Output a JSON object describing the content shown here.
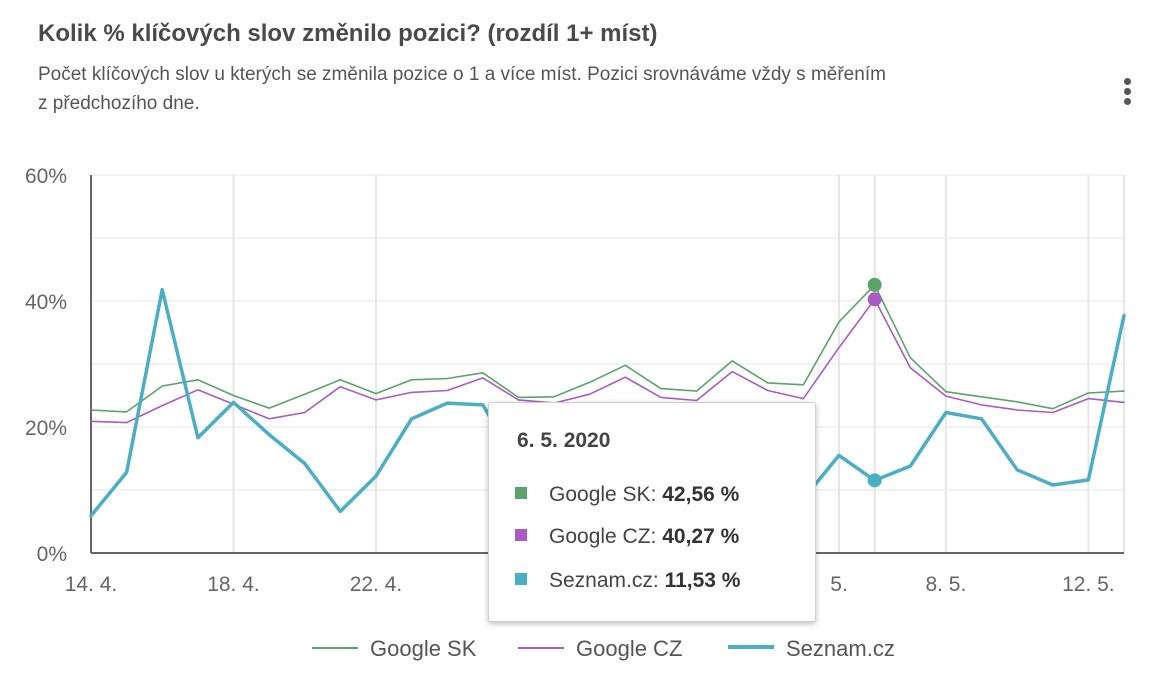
{
  "title": "Kolik % klíčových slov změnilo pozici? (rozdíl 1+ míst)",
  "subtitle": "Počet klíčových slov u kterých se změnila pozice o 1 a více míst. Pozici srovnáváme vždy s měřením z předchozího dne.",
  "menu_icon": "more-vert-icon",
  "chart_data": {
    "type": "line",
    "title": "Kolik % klíčových slov změnilo pozici? (rozdíl 1+ míst)",
    "ylim": [
      0,
      60
    ],
    "yticks": [
      "0%",
      "20%",
      "40%",
      "60%"
    ],
    "ytick_values": [
      0,
      20,
      40,
      60
    ],
    "xlabels": [
      {
        "label": "14. 4.",
        "index": 0
      },
      {
        "label": "18. 4.",
        "index": 4
      },
      {
        "label": "22. 4.",
        "index": 8
      },
      {
        "label": "5.",
        "index": 21
      },
      {
        "label": "8. 5.",
        "index": 24
      },
      {
        "label": "12. 5.",
        "index": 28
      }
    ],
    "x": [
      "14. 4.",
      "15. 4.",
      "16. 4.",
      "17. 4.",
      "18. 4.",
      "19. 4.",
      "20. 4.",
      "21. 4.",
      "22. 4.",
      "23. 4.",
      "24. 4.",
      "25. 4.",
      "26. 4.",
      "27. 4.",
      "28. 4.",
      "29. 4.",
      "30. 4.",
      "1. 5.",
      "2. 5.",
      "3. 5.",
      "4. 5.",
      "5. 5.",
      "6. 5.",
      "7. 5.",
      "8. 5.",
      "9. 5.",
      "10. 5.",
      "11. 5.",
      "12. 5.",
      "13. 5."
    ],
    "series": [
      {
        "name": "Google SK",
        "color": "#5aa469",
        "width": 1.6,
        "values": [
          22.7,
          22.4,
          26.5,
          27.5,
          25.0,
          23.0,
          25.2,
          27.5,
          25.3,
          27.5,
          27.7,
          28.6,
          24.7,
          24.8,
          27.1,
          29.8,
          26.1,
          25.7,
          30.5,
          27.0,
          26.7,
          36.7,
          42.56,
          31.0,
          25.6,
          24.8,
          24.0,
          22.9,
          25.4,
          25.7
        ]
      },
      {
        "name": "Google CZ",
        "color": "#a95bc6",
        "width": 1.6,
        "values": [
          20.9,
          20.7,
          23.4,
          25.9,
          23.6,
          21.3,
          22.3,
          26.4,
          24.3,
          25.5,
          25.8,
          27.8,
          24.3,
          23.8,
          25.2,
          27.9,
          24.7,
          24.2,
          28.8,
          25.8,
          24.5,
          32.6,
          40.27,
          29.4,
          24.9,
          23.5,
          22.7,
          22.3,
          24.5,
          23.9
        ]
      },
      {
        "name": "Seznam.cz",
        "color": "#4aaec4",
        "width": 3.5,
        "values": [
          5.9,
          12.8,
          41.8,
          18.3,
          23.9,
          18.8,
          14.2,
          6.6,
          12.2,
          21.3,
          23.8,
          23.5,
          14.0,
          10.8,
          8.0,
          6.8,
          8.4,
          11.2,
          7.3,
          9.5,
          8.6,
          15.5,
          11.53,
          13.8,
          22.3,
          21.3,
          13.2,
          10.8,
          11.6,
          37.7
        ]
      }
    ],
    "highlight_index": 22,
    "legend": "bottom-center",
    "grid": true
  },
  "tooltip": {
    "date": "6. 5. 2020",
    "rows": [
      {
        "label": "Google SK:",
        "value": "42,56 %",
        "color": "#5aa469"
      },
      {
        "label": "Google CZ:",
        "value": "40,27 %",
        "color": "#a95bc6"
      },
      {
        "label": "Seznam.cz:",
        "value": "11,53 %",
        "color": "#4aaec4"
      }
    ]
  },
  "legend": [
    {
      "label": "Google SK",
      "color": "#5aa469"
    },
    {
      "label": "Google CZ",
      "color": "#a95bc6"
    },
    {
      "label": "Seznam.cz",
      "color": "#4aaec4"
    }
  ]
}
